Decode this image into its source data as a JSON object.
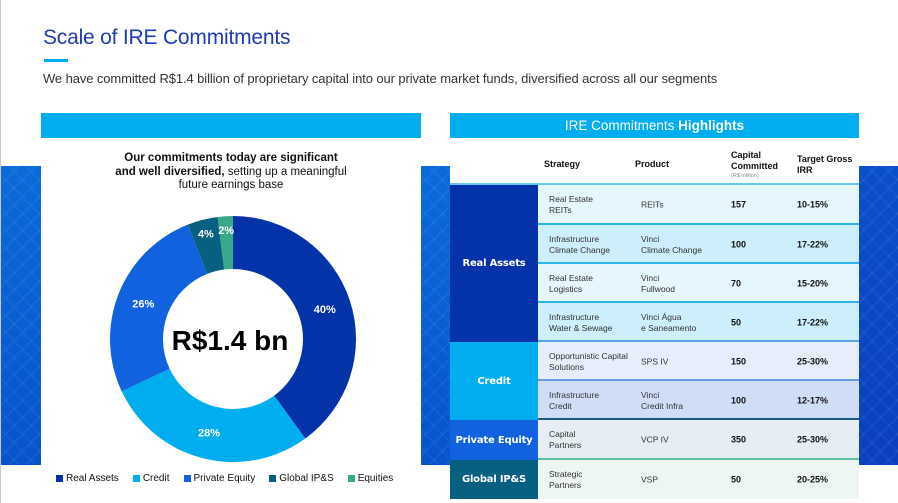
{
  "page": {
    "title": "Scale of IRE Commitments",
    "subtitle": "We  have committed R$1.4 billion of proprietary capital into our private market funds, diversified across all our segments"
  },
  "left_panel": {
    "heading_bold_1": "Our commitments today are significant",
    "heading_bold_2": "and well diversified,",
    "heading_rest_2": " setting up a meaningful",
    "heading_line_3": "future earnings base",
    "center_label": "R$1.4 bn"
  },
  "chart_data": {
    "type": "pie",
    "subtype": "donut",
    "title": "Our commitments today are significant and well diversified, setting up a meaningful future earnings base",
    "center_label": "R$1.4 bn",
    "categories": [
      "Real Assets",
      "Credit",
      "Private Equity",
      "Global IP&S",
      "Equities"
    ],
    "values": [
      40,
      28,
      26,
      4,
      2
    ],
    "labels": [
      "40%",
      "28%",
      "26%",
      "4%",
      "2%"
    ],
    "colors": [
      "#0432a8",
      "#00aeef",
      "#1262e0",
      "#07607f",
      "#3aa98a"
    ],
    "legend": "bottom",
    "start": "top-clockwise"
  },
  "right_panel": {
    "title_regular": "IRE Commitments ",
    "title_bold": "Highlights",
    "headers": {
      "strategy": "Strategy",
      "product": "Product",
      "capital_1": "Capital",
      "capital_2": "Committed",
      "capital_unit": "(R$ million)",
      "irr_1": "Target Gross",
      "irr_2": "IRR"
    },
    "segments": [
      {
        "name": "Real Assets",
        "color": "#0432a8"
      },
      {
        "name": "Credit",
        "color": "#00aeef"
      },
      {
        "name": "Private  Equity",
        "color": "#1262e0"
      },
      {
        "name": "Global IP&S",
        "color": "#07607f"
      }
    ],
    "rows": [
      {
        "strategy_1": "Real Estate",
        "strategy_2": "REITs",
        "product_1": "REITs",
        "product_2": "",
        "capital": "157",
        "irr": "10-15%"
      },
      {
        "strategy_1": "Infrastructure",
        "strategy_2": "Climate  Change",
        "product_1": "Vinci",
        "product_2": "Climate  Change",
        "capital": "100",
        "irr": "17-22%"
      },
      {
        "strategy_1": "Real Estate",
        "strategy_2": "Logistics",
        "product_1": "Vinci",
        "product_2": "Fullwood",
        "capital": "70",
        "irr": "15-20%"
      },
      {
        "strategy_1": "Infrastructure",
        "strategy_2": "Water  & Sewage",
        "product_1": "Vinci Água",
        "product_2": "e Saneamento",
        "capital": "50",
        "irr": "17-22%"
      },
      {
        "strategy_1": "Opportunistic Capital",
        "strategy_2": "Solutions",
        "product_1": "SPS IV",
        "product_2": "",
        "capital": "150",
        "irr": "25-30%"
      },
      {
        "strategy_1": "Infrastructure",
        "strategy_2": "Credit",
        "product_1": "Vinci",
        "product_2": "Credit  Infra",
        "capital": "100",
        "irr": "12-17%"
      },
      {
        "strategy_1": "Capital",
        "strategy_2": "Partners",
        "product_1": "VCP IV",
        "product_2": "",
        "capital": "350",
        "irr": "25-30%"
      },
      {
        "strategy_1": "Strategic",
        "strategy_2": "Partners",
        "product_1": "VSP",
        "product_2": "",
        "capital": "50",
        "irr": "20-25%"
      }
    ]
  }
}
